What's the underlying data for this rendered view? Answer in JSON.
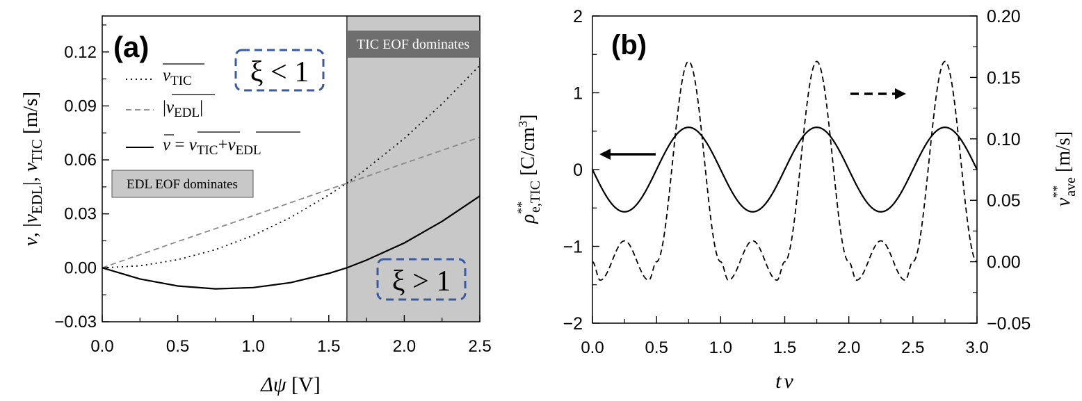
{
  "chart_data": [
    {
      "panel_label": "(a)",
      "type": "line",
      "xlabel_sym": "Δψ",
      "xlabel_unit": "[V]",
      "ylabel": "v̄, |v̄EDL|, v̄TIC [m/s]",
      "xlim": [
        0.0,
        2.5
      ],
      "ylim": [
        -0.03,
        0.14
      ],
      "xticks": [
        "0.0",
        "0.5",
        "1.0",
        "1.5",
        "2.0",
        "2.5"
      ],
      "yticks": [
        "−0.03",
        "0.00",
        "0.03",
        "0.06",
        "0.09",
        "0.12"
      ],
      "x": [
        0.0,
        0.25,
        0.5,
        0.75,
        1.0,
        1.25,
        1.5,
        1.62,
        1.75,
        2.0,
        2.25,
        2.5
      ],
      "series": [
        {
          "name": "v̄TIC",
          "style": "dotted",
          "values": [
            0.0,
            0.0011,
            0.0045,
            0.0101,
            0.018,
            0.0281,
            0.0405,
            0.047,
            0.0551,
            0.0719,
            0.0911,
            0.1125
          ]
        },
        {
          "name": "|v̄EDL|",
          "style": "dashed",
          "values": [
            0.0,
            0.0073,
            0.0146,
            0.0218,
            0.029,
            0.0363,
            0.0436,
            0.047,
            0.0508,
            0.0581,
            0.0653,
            0.0726
          ]
        },
        {
          "name": "v̄ = v̄TIC + v̄EDL",
          "style": "solid",
          "values": [
            0.0,
            -0.0062,
            -0.0101,
            -0.0117,
            -0.011,
            -0.0082,
            -0.0031,
            0.0,
            0.0043,
            0.0138,
            0.0258,
            0.0399
          ]
        }
      ],
      "crossover_x": 1.62,
      "shaded_region": [
        1.62,
        2.5
      ],
      "legend": [
        "v̄TIC",
        "|v̄EDL|",
        "v̄ = v̄TIC+v̄EDL"
      ],
      "annotations": {
        "tic_label": "TIC EOF dominates",
        "edl_label": "EDL EOF dominates",
        "xi_less": "ξ < 1",
        "xi_greater": "ξ > 1"
      }
    },
    {
      "panel_label": "(b)",
      "type": "line",
      "xlabel": "tν",
      "ylabel_left": "ρ**e,TIC [C/cm³]",
      "ylabel_right": "v̄**ave [m/s]",
      "xlim": [
        0.0,
        3.0
      ],
      "ylim_left": [
        -2,
        2
      ],
      "ylim_right": [
        -0.05,
        0.2
      ],
      "xticks": [
        "0.0",
        "0.5",
        "1.0",
        "1.5",
        "2.0",
        "2.5",
        "3.0"
      ],
      "yticks_left": [
        "−2",
        "−1",
        "0",
        "1",
        "2"
      ],
      "yticks_right": [
        "−0.05",
        "0.00",
        "0.05",
        "0.10",
        "0.15",
        "0.20"
      ],
      "series": [
        {
          "name": "ρ**e,TIC",
          "axis": "left",
          "style": "solid",
          "form": "-0.55·sin(2πtν)",
          "amplitude": 0.55,
          "period": 1.0
        },
        {
          "name": "v̄**ave",
          "axis": "right",
          "style": "dashed",
          "form": "periodic, period 1",
          "t": [
            0.0,
            0.06,
            0.25,
            0.44,
            0.5,
            0.75,
            1.0
          ],
          "values": [
            0.0,
            -0.015,
            0.017,
            -0.015,
            0.0,
            0.163,
            0.0
          ]
        }
      ],
      "arrows": {
        "solid": "left",
        "dashed": "right"
      }
    }
  ]
}
